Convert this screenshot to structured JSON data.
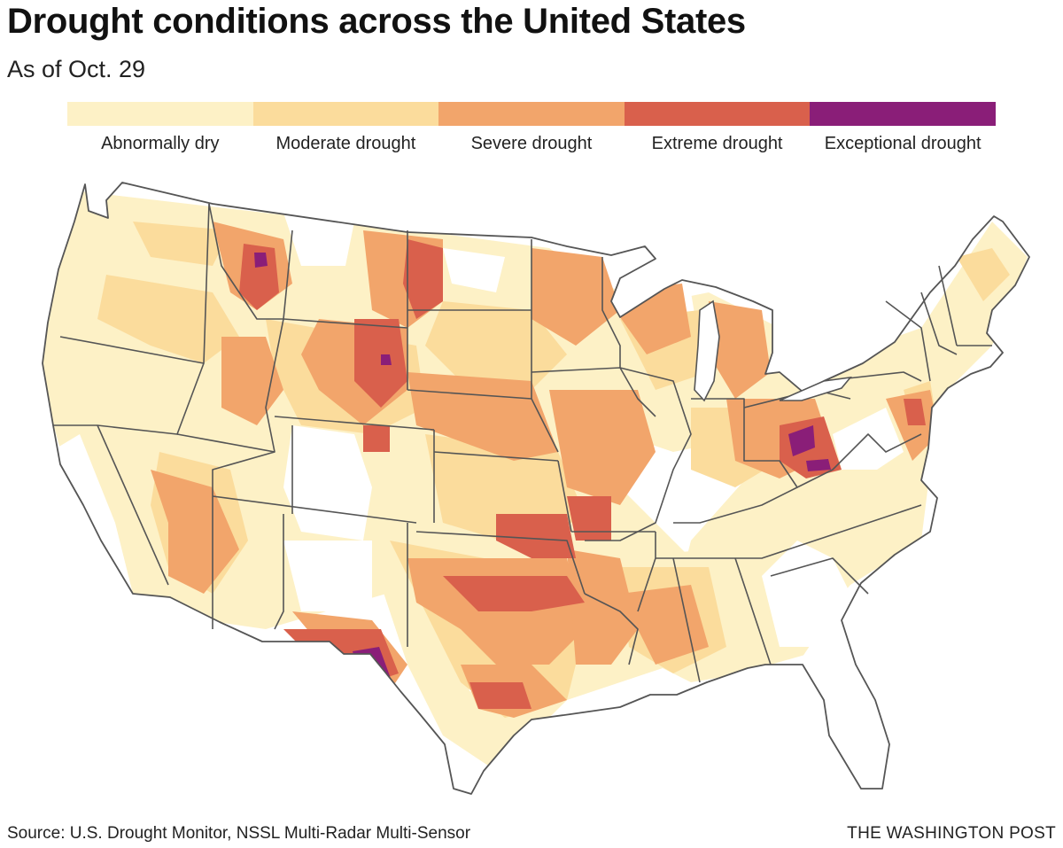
{
  "header": {
    "title": "Drought conditions across the United States",
    "subtitle": "As of Oct. 29"
  },
  "legend": {
    "items": [
      {
        "label": "Abnormally dry",
        "color": "#fdf1c6"
      },
      {
        "label": "Moderate drought",
        "color": "#fbdc9c"
      },
      {
        "label": "Severe drought",
        "color": "#f2a56b"
      },
      {
        "label": "Extreme drought",
        "color": "#d9604c"
      },
      {
        "label": "Exceptional drought",
        "color": "#8a1e78"
      }
    ]
  },
  "footer": {
    "source": "Source: U.S. Drought Monitor, NSSL Multi-Radar Multi-Sensor",
    "credit": "THE WASHINGTON POST"
  }
}
